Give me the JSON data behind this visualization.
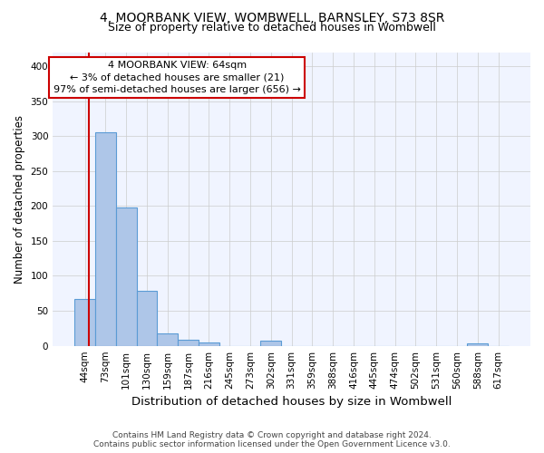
{
  "title": "4, MOORBANK VIEW, WOMBWELL, BARNSLEY, S73 8SR",
  "subtitle": "Size of property relative to detached houses in Wombwell",
  "xlabel": "Distribution of detached houses by size in Wombwell",
  "ylabel": "Number of detached properties",
  "bar_labels": [
    "44sqm",
    "73sqm",
    "101sqm",
    "130sqm",
    "159sqm",
    "187sqm",
    "216sqm",
    "245sqm",
    "273sqm",
    "302sqm",
    "331sqm",
    "359sqm",
    "388sqm",
    "416sqm",
    "445sqm",
    "474sqm",
    "502sqm",
    "531sqm",
    "560sqm",
    "588sqm",
    "617sqm"
  ],
  "bar_values": [
    67,
    305,
    198,
    78,
    18,
    9,
    5,
    0,
    0,
    8,
    0,
    0,
    0,
    0,
    0,
    0,
    0,
    0,
    0,
    4,
    0
  ],
  "bar_color": "#aec6e8",
  "bar_edge_color": "#5b9bd5",
  "ylim": [
    0,
    420
  ],
  "yticks": [
    0,
    50,
    100,
    150,
    200,
    250,
    300,
    350,
    400
  ],
  "red_line_x": 0.31,
  "annotation_text": "4 MOORBANK VIEW: 64sqm\n← 3% of detached houses are smaller (21)\n97% of semi-detached houses are larger (656) →",
  "annotation_box_color": "#ffffff",
  "annotation_border_color": "#cc0000",
  "footer_line1": "Contains HM Land Registry data © Crown copyright and database right 2024.",
  "footer_line2": "Contains public sector information licensed under the Open Government Licence v3.0.",
  "title_fontsize": 10,
  "subtitle_fontsize": 9,
  "tick_fontsize": 7.5,
  "ylabel_fontsize": 8.5,
  "xlabel_fontsize": 9.5,
  "footer_fontsize": 6.5
}
